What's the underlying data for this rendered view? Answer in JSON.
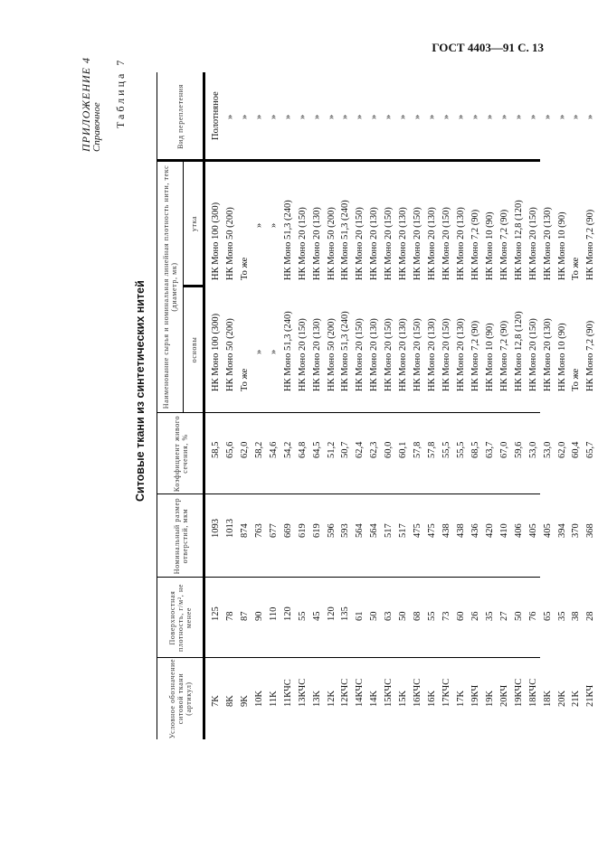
{
  "page_header": "ГОСТ 4403—91 С. 13",
  "appendix": {
    "label": "ПРИЛОЖЕНИЕ 4",
    "sub": "Справочное"
  },
  "table_label": "Таблица 7",
  "table_title": "Ситовые ткани из синтетических нитей",
  "table": {
    "headers": {
      "article": "Условное обозначение ситовой ткани (артикул)",
      "density": "Поверхностная плотность, г/м², не менее",
      "aperture": "Номинальный размер отверстий, мкм",
      "open_area": "Коэффициент живого сечения, %",
      "material": "Наименование сырья и номинальная линейная плотность нити, текс (диаметр, мк)",
      "warp": "основы",
      "weft": "утка",
      "weave": "Вид переплетения"
    },
    "rows": [
      {
        "article": "7K",
        "density": "125",
        "aperture": "1093",
        "open_area": "58,5",
        "warp": "НК Моно 100 (300)",
        "weft": "НК Моно 100 (300)",
        "weave": "Полотняное"
      },
      {
        "article": "8K",
        "density": "78",
        "aperture": "1013",
        "open_area": "65,6",
        "warp": "НК Моно 50 (200)",
        "weft": "НК Моно 50 (200)",
        "weave": "»"
      },
      {
        "article": "9K",
        "density": "87",
        "aperture": "874",
        "open_area": "62,0",
        "warp": "То же",
        "weft": "То же",
        "weave": "»"
      },
      {
        "article": "10K",
        "density": "90",
        "aperture": "763",
        "open_area": "58,2",
        "warp": "»",
        "weft": "»",
        "weave": "»"
      },
      {
        "article": "11K",
        "density": "110",
        "aperture": "677",
        "open_area": "54,6",
        "warp": "»",
        "weft": "»",
        "weave": "»"
      },
      {
        "article": "11КЧС",
        "density": "120",
        "aperture": "669",
        "open_area": "54,2",
        "warp": "НК Моно 51,3 (240)",
        "weft": "НК Моно 51,3 (240)",
        "weave": "»"
      },
      {
        "article": "13КЧС",
        "density": "55",
        "aperture": "619",
        "open_area": "64,8",
        "warp": "НК Моно 20 (150)",
        "weft": "НК Моно 20 (150)",
        "weave": "»"
      },
      {
        "article": "13K",
        "density": "45",
        "aperture": "619",
        "open_area": "64,5",
        "warp": "НК Моно 20 (130)",
        "weft": "НК Моно 20 (130)",
        "weave": "»"
      },
      {
        "article": "12K",
        "density": "120",
        "aperture": "596",
        "open_area": "51,2",
        "warp": "НК Моно 50 (200)",
        "weft": "НК Моно 50 (200)",
        "weave": "»"
      },
      {
        "article": "12КЧС",
        "density": "135",
        "aperture": "593",
        "open_area": "50,7",
        "warp": "НК Моно 51,3 (240)",
        "weft": "НК Моно 51,3 (240)",
        "weave": "»"
      },
      {
        "article": "14КЧС",
        "density": "61",
        "aperture": "564",
        "open_area": "62,4",
        "warp": "НК Моно 20 (150)",
        "weft": "НК Моно 20 (150)",
        "weave": "»"
      },
      {
        "article": "14K",
        "density": "50",
        "aperture": "564",
        "open_area": "62,3",
        "warp": "НК Моно 20 (130)",
        "weft": "НК Моно 20 (130)",
        "weave": "»"
      },
      {
        "article": "15КЧС",
        "density": "63",
        "aperture": "517",
        "open_area": "60,0",
        "warp": "НК Моно 20 (150)",
        "weft": "НК Моно 20 (150)",
        "weave": "»"
      },
      {
        "article": "15K",
        "density": "50",
        "aperture": "517",
        "open_area": "60,1",
        "warp": "НК Моно 20 (130)",
        "weft": "НК Моно 20 (130)",
        "weave": "»"
      },
      {
        "article": "16КЧС",
        "density": "68",
        "aperture": "475",
        "open_area": "57,8",
        "warp": "НК Моно 20 (150)",
        "weft": "НК Моно 20 (150)",
        "weave": "»"
      },
      {
        "article": "16K",
        "density": "55",
        "aperture": "475",
        "open_area": "57,8",
        "warp": "НК Моно 20 (130)",
        "weft": "НК Моно 20 (130)",
        "weave": "»"
      },
      {
        "article": "17КЧС",
        "density": "73",
        "aperture": "438",
        "open_area": "55,5",
        "warp": "НК Моно 20 (150)",
        "weft": "НК Моно 20 (150)",
        "weave": "»"
      },
      {
        "article": "17K",
        "density": "60",
        "aperture": "438",
        "open_area": "55,5",
        "warp": "НК Моно 20 (130)",
        "weft": "НК Моно 20 (130)",
        "weave": "»"
      },
      {
        "article": "19КЧ",
        "density": "26",
        "aperture": "436",
        "open_area": "68,5",
        "warp": "НК Моно 7,2 (90)",
        "weft": "НК Моно 7,2 (90)",
        "weave": "»"
      },
      {
        "article": "19K",
        "density": "35",
        "aperture": "420",
        "open_area": "63,7",
        "warp": "НК Моно 10 (90)",
        "weft": "НК Моно 10 (90)",
        "weave": "»"
      },
      {
        "article": "20КЧ",
        "density": "27",
        "aperture": "410",
        "open_area": "67,0",
        "warp": "НК Моно 7,2 (90)",
        "weft": "НК Моно 7,2 (90)",
        "weave": "»"
      },
      {
        "article": "19КЧС",
        "density": "50",
        "aperture": "406",
        "open_area": "59,6",
        "warp": "НК Моно 12,8 (120)",
        "weft": "НК Моно 12,8 (120)",
        "weave": "»"
      },
      {
        "article": "18КЧС",
        "density": "76",
        "aperture": "405",
        "open_area": "53,0",
        "warp": "НК Моно 20 (150)",
        "weft": "НК Моно 20 (150)",
        "weave": "»"
      },
      {
        "article": "18K",
        "density": "65",
        "aperture": "405",
        "open_area": "53,0",
        "warp": "НК Моно 20 (130)",
        "weft": "НК Моно 20 (130)",
        "weave": "»"
      },
      {
        "article": "20K",
        "density": "35",
        "aperture": "394",
        "open_area": "62,0",
        "warp": "НК Моно 10 (90)",
        "weft": "НК Моно 10 (90)",
        "weave": "»"
      },
      {
        "article": "21K",
        "density": "38",
        "aperture": "370",
        "open_area": "60,4",
        "warp": "То же",
        "weft": "То же",
        "weave": "»"
      },
      {
        "article": "21КЧ",
        "density": "28",
        "aperture": "368",
        "open_area": "65,7",
        "warp": "НК Моно 7,2 (90)",
        "weft": "НК Моно 7,2 (90)",
        "weave": "»"
      }
    ]
  }
}
